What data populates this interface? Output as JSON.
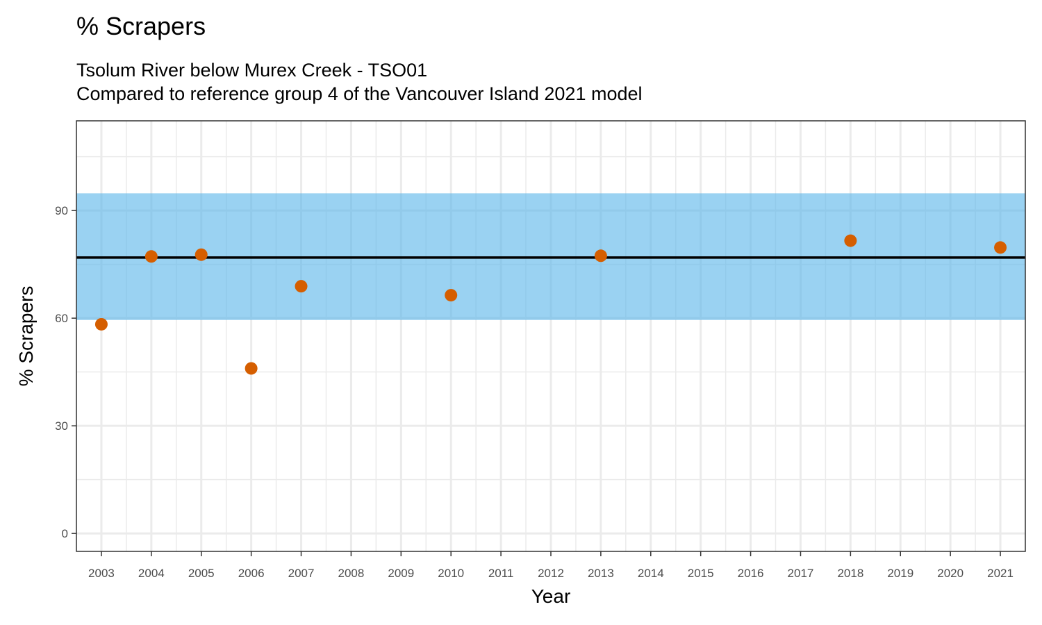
{
  "title": "% Scrapers",
  "subtitle_lines": [
    "Tsolum River below Murex Creek - TSO01",
    "Compared to reference group 4 of the Vancouver Island 2021 model"
  ],
  "chart_data": {
    "type": "scatter",
    "title": "% Scrapers",
    "xlabel": "Year",
    "ylabel": "% Scrapers",
    "categories": [
      "2003",
      "2004",
      "2005",
      "2006",
      "2007",
      "2008",
      "2009",
      "2010",
      "2011",
      "2012",
      "2013",
      "2014",
      "2015",
      "2016",
      "2017",
      "2018",
      "2019",
      "2020",
      "2021"
    ],
    "points": [
      {
        "x": "2003",
        "y": 58.3
      },
      {
        "x": "2004",
        "y": 77.2
      },
      {
        "x": "2005",
        "y": 77.7
      },
      {
        "x": "2006",
        "y": 46.0
      },
      {
        "x": "2007",
        "y": 68.9
      },
      {
        "x": "2010",
        "y": 66.4
      },
      {
        "x": "2013",
        "y": 77.4
      },
      {
        "x": "2018",
        "y": 81.6
      },
      {
        "x": "2021",
        "y": 79.7
      }
    ],
    "reference_line": 76.9,
    "reference_band": [
      59.5,
      94.8
    ],
    "ylim": [
      -5,
      115
    ],
    "yticks": [
      0,
      30,
      60,
      90
    ],
    "grid": true,
    "colors": {
      "points": "#D55E00",
      "band": "#56B4E9",
      "reference_line": "#000000",
      "grid": "#EBEBEB",
      "panel_border": "#333333"
    }
  }
}
